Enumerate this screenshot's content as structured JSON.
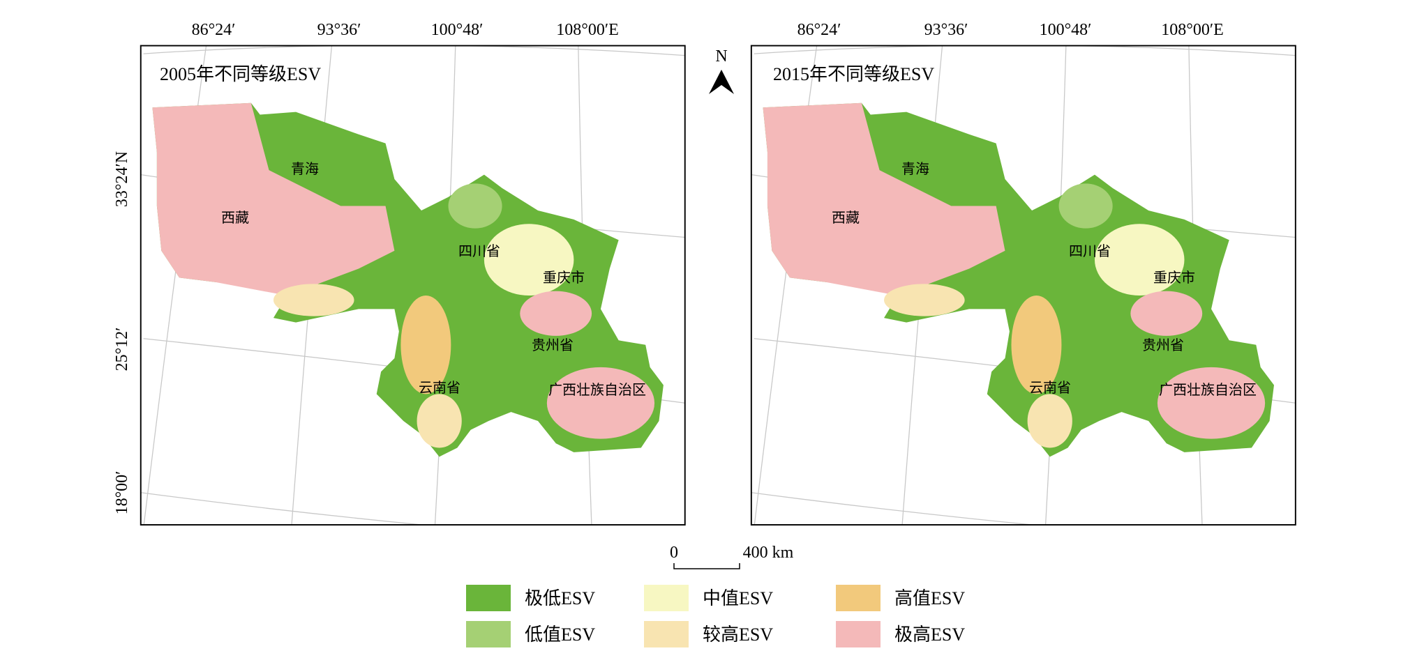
{
  "maps": [
    {
      "title": "2005年不同等级ESV",
      "labels": [
        "青海",
        "西藏",
        "四川省",
        "重庆市",
        "贵州省",
        "云南省",
        "广西壮族自治区"
      ]
    },
    {
      "title": "2015年不同等级ESV",
      "labels": [
        "青海",
        "西藏",
        "四川省",
        "重庆市",
        "贵州省",
        "云南省",
        "广西壮族自治区"
      ]
    }
  ],
  "longitude_labels": [
    "86°24′",
    "93°36′",
    "100°48′",
    "108°00′E"
  ],
  "latitude_labels": [
    "33°24′N",
    "25°12′",
    "18°00′"
  ],
  "north": "N",
  "scale_bar": {
    "start": "0",
    "end": "400 km"
  },
  "legend": [
    {
      "label": "极低ESV",
      "color": "#6ab53a"
    },
    {
      "label": "低值ESV",
      "color": "#a5d074"
    },
    {
      "label": "中值ESV",
      "color": "#f7f7c2"
    },
    {
      "label": "较高ESV",
      "color": "#f8e4b1"
    },
    {
      "label": "高值ESV",
      "color": "#f2c97c"
    },
    {
      "label": "极高ESV",
      "color": "#f4b9b9"
    }
  ]
}
